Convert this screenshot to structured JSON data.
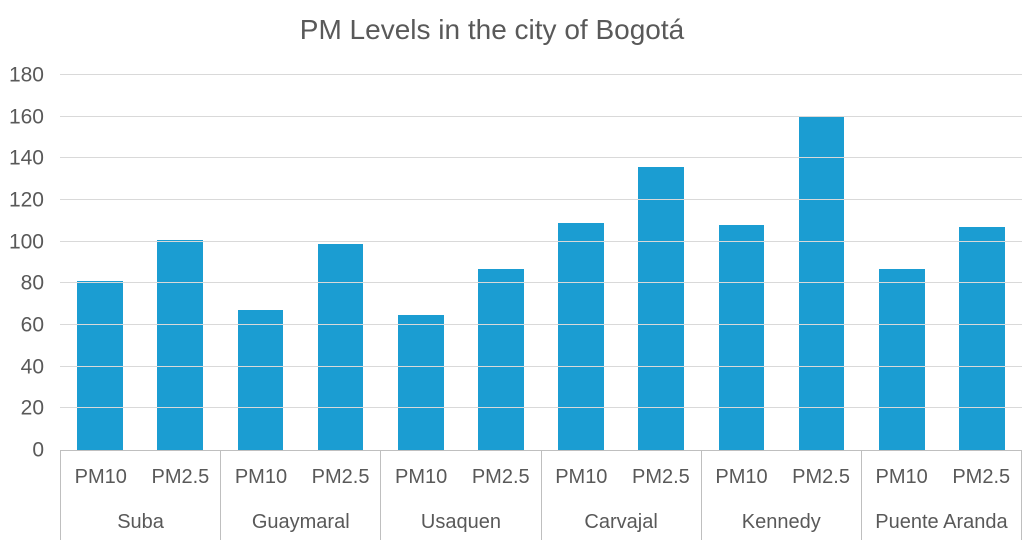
{
  "chart_data": {
    "type": "bar",
    "title": "PM Levels in the city of Bogotá",
    "groups": [
      "Suba",
      "Guaymaral",
      "Usaquen",
      "Carvajal",
      "Kennedy",
      "Puente Aranda"
    ],
    "sub_categories": [
      "PM10",
      "PM2.5"
    ],
    "series": [
      {
        "name": "PM10",
        "values": [
          81,
          67,
          65,
          109,
          108,
          87
        ]
      },
      {
        "name": "PM2.5",
        "values": [
          101,
          99,
          87,
          136,
          160,
          107
        ]
      }
    ],
    "xlabel": "",
    "ylabel": "",
    "ylim": [
      0,
      180
    ],
    "yticks": [
      0,
      20,
      40,
      60,
      80,
      100,
      120,
      140,
      160,
      180
    ],
    "grid": true,
    "legend": "none",
    "bar_color": "#1B9DD2",
    "grid_color": "#D9D9D9",
    "axis_color": "#BFBFBF",
    "text_color": "#595959"
  }
}
